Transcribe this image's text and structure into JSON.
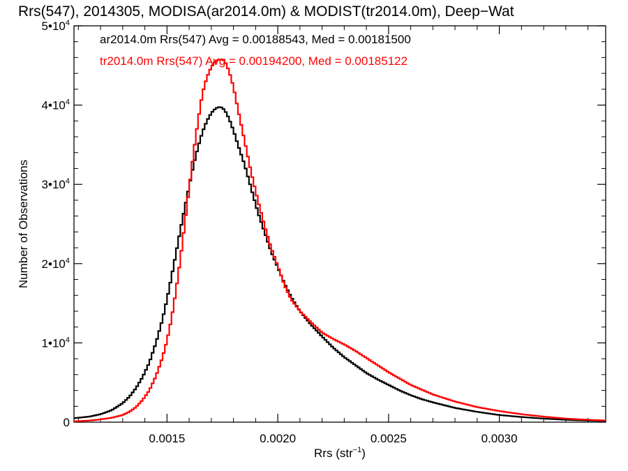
{
  "chart_data": {
    "type": "line",
    "title": "Rrs(547), 2014305, MODISA(ar2014.0m) & MODIST(tr2014.0m), Deep−Wat",
    "xlabel": "Rrs (str",
    "xlabel_sup": "−1",
    "xlabel_suffix": ")",
    "ylabel": "Number of Observations",
    "xlim": [
      0.00108,
      0.00348
    ],
    "ylim": [
      0,
      50000
    ],
    "x_ticks": [
      {
        "value": 0.0015,
        "label": "0.0015"
      },
      {
        "value": 0.002,
        "label": "0.0020"
      },
      {
        "value": 0.0025,
        "label": "0.0025"
      },
      {
        "value": 0.003,
        "label": "0.0030"
      }
    ],
    "y_ticks": [
      {
        "value": 0,
        "base": "0",
        "exp": ""
      },
      {
        "value": 10000,
        "base": "1•10",
        "exp": "4"
      },
      {
        "value": 20000,
        "base": "2•10",
        "exp": "4"
      },
      {
        "value": 30000,
        "base": "3•10",
        "exp": "4"
      },
      {
        "value": 40000,
        "base": "4•10",
        "exp": "4"
      },
      {
        "value": 50000,
        "base": "5•10",
        "exp": "4"
      }
    ],
    "series": [
      {
        "name": "ar2014.0m",
        "color": "#000000",
        "x": [
          0.00108,
          0.00115,
          0.0012,
          0.00125,
          0.0013,
          0.00133,
          0.00136,
          0.00139,
          0.00142,
          0.00145,
          0.00148,
          0.0015,
          0.00152,
          0.00154,
          0.00156,
          0.00158,
          0.0016,
          0.00162,
          0.00164,
          0.00166,
          0.00168,
          0.0017,
          0.00172,
          0.00174,
          0.00176,
          0.00178,
          0.0018,
          0.00182,
          0.00185,
          0.00188,
          0.00191,
          0.00194,
          0.00197,
          0.002,
          0.00203,
          0.00206,
          0.0021,
          0.00215,
          0.0022,
          0.00225,
          0.0023,
          0.00235,
          0.0024,
          0.00245,
          0.0025,
          0.00255,
          0.0026,
          0.00265,
          0.0027,
          0.0028,
          0.0029,
          0.003,
          0.0031,
          0.0032,
          0.0033,
          0.0034,
          0.00348
        ],
        "y": [
          500,
          700,
          1000,
          1500,
          2400,
          3200,
          4300,
          5700,
          7500,
          10000,
          13000,
          15500,
          18300,
          21200,
          24200,
          27000,
          29800,
          32500,
          34700,
          36600,
          38000,
          39000,
          39600,
          39800,
          39400,
          38300,
          36800,
          35000,
          32500,
          29500,
          26500,
          24000,
          21500,
          19500,
          17500,
          15800,
          14000,
          12300,
          10800,
          9400,
          8200,
          7200,
          6200,
          5400,
          4700,
          4000,
          3400,
          2900,
          2500,
          1800,
          1300,
          900,
          650,
          450,
          300,
          200,
          150
        ]
      },
      {
        "name": "tr2014.0m",
        "color": "#ff0000",
        "x": [
          0.00108,
          0.00115,
          0.0012,
          0.00125,
          0.0013,
          0.00133,
          0.00136,
          0.00139,
          0.00142,
          0.00145,
          0.00148,
          0.0015,
          0.00152,
          0.00154,
          0.00156,
          0.00158,
          0.0016,
          0.00162,
          0.00164,
          0.00166,
          0.00168,
          0.0017,
          0.00172,
          0.00174,
          0.00176,
          0.00178,
          0.0018,
          0.00182,
          0.00185,
          0.00188,
          0.00191,
          0.00194,
          0.00197,
          0.002,
          0.00203,
          0.00206,
          0.0021,
          0.00215,
          0.0022,
          0.00225,
          0.0023,
          0.00235,
          0.0024,
          0.00245,
          0.0025,
          0.00255,
          0.0026,
          0.00265,
          0.0027,
          0.0028,
          0.0029,
          0.003,
          0.0031,
          0.0032,
          0.0033,
          0.0034,
          0.00348
        ],
        "y": [
          100,
          200,
          350,
          550,
          900,
          1300,
          1900,
          2800,
          4000,
          5800,
          8200,
          10300,
          13000,
          16500,
          20500,
          25000,
          29500,
          34000,
          38000,
          41500,
          43500,
          44800,
          45600,
          45800,
          45600,
          44300,
          42300,
          39500,
          35500,
          31500,
          28000,
          24800,
          22000,
          19700,
          17300,
          15500,
          14000,
          12600,
          11300,
          10500,
          9800,
          9000,
          8100,
          7200,
          6300,
          5500,
          4700,
          4100,
          3500,
          2600,
          1900,
          1400,
          1000,
          700,
          450,
          300,
          200
        ]
      }
    ],
    "annotations": [
      {
        "text": "ar2014.0m Rrs(547) Avg = 0.00188543, Med = 0.00181500",
        "color": "#000000"
      },
      {
        "text": "tr2014.0m Rrs(547) Avg = 0.00194200, Med = 0.00185122",
        "color": "#ff0000"
      }
    ]
  }
}
